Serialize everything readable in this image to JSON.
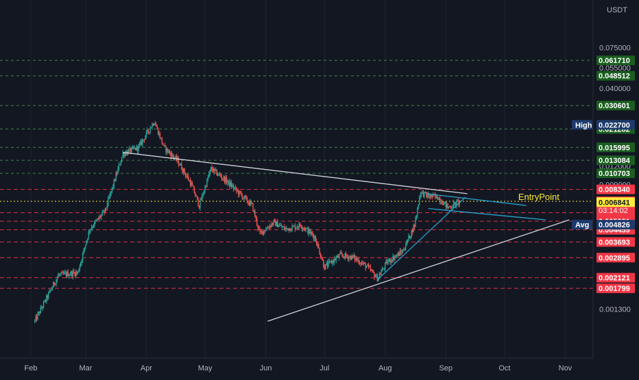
{
  "chart_data": {
    "type": "candlestick",
    "price_axis": {
      "currency": "USDT",
      "scale": "log",
      "ylim": [
        0.00108,
        0.0775
      ],
      "tick_labels": [
        "0.075000",
        "0.055000",
        "0.040000",
        "0.012000",
        "0.009000",
        "0.001300"
      ],
      "tick_values": [
        0.075,
        0.055,
        0.04,
        0.012,
        0.009,
        0.0013
      ]
    },
    "time_axis": {
      "labels": [
        "Feb",
        "Mar",
        "Apr",
        "May",
        "Jun",
        "Jul",
        "Aug",
        "Sep",
        "Oct",
        "Nov"
      ],
      "label_positions_days": [
        0,
        28,
        59,
        89,
        120,
        150,
        181,
        212,
        242,
        273
      ]
    },
    "grid": true,
    "levels": [
      {
        "value": 0.06171,
        "label": "0.061710",
        "style": "green"
      },
      {
        "value": 0.048512,
        "label": "0.048512",
        "style": "green"
      },
      {
        "value": 0.030601,
        "label": "0.030601",
        "style": "green"
      },
      {
        "value": 0.021282,
        "label": "0.021282",
        "style": "green"
      },
      {
        "value": 0.015995,
        "label": "0.015995",
        "style": "green"
      },
      {
        "value": 0.013084,
        "label": "0.013084",
        "style": "green"
      },
      {
        "value": 0.010703,
        "label": "0.010703",
        "style": "green"
      },
      {
        "value": 0.00834,
        "label": "0.008340",
        "style": "red"
      },
      {
        "value": 0.00581,
        "label": "0.005810",
        "style": "red"
      },
      {
        "value": 0.005091,
        "label": "0.005091",
        "style": "red"
      },
      {
        "value": 0.004459,
        "label": "0.004459",
        "style": "red"
      },
      {
        "value": 0.003693,
        "label": "0.003693",
        "style": "red"
      },
      {
        "value": 0.002895,
        "label": "0.002895",
        "style": "red"
      },
      {
        "value": 0.002121,
        "label": "0.002121",
        "style": "red"
      },
      {
        "value": 0.001799,
        "label": "0.001799",
        "style": "red"
      }
    ],
    "markers": [
      {
        "value": 0.0227,
        "tag": "High",
        "label": "0.022700",
        "style": "navy"
      },
      {
        "value": 0.004826,
        "tag": "Avg",
        "label": "0.004826",
        "style": "navy"
      }
    ],
    "entry": {
      "value": 0.006937,
      "label": "0.006937",
      "countdown": "03:14:02",
      "text": "EntryPoint"
    },
    "current": {
      "value": 0.006841,
      "label": "0.006841"
    },
    "key_points": [
      {
        "day": 2,
        "price": 0.00108
      },
      {
        "day": 14,
        "price": 0.0022
      },
      {
        "day": 24,
        "price": 0.0023
      },
      {
        "day": 30,
        "price": 0.0045
      },
      {
        "day": 38,
        "price": 0.006
      },
      {
        "day": 47,
        "price": 0.0145
      },
      {
        "day": 55,
        "price": 0.016
      },
      {
        "day": 63,
        "price": 0.024
      },
      {
        "day": 68,
        "price": 0.016
      },
      {
        "day": 75,
        "price": 0.013
      },
      {
        "day": 82,
        "price": 0.009
      },
      {
        "day": 86,
        "price": 0.0065
      },
      {
        "day": 92,
        "price": 0.0115
      },
      {
        "day": 100,
        "price": 0.0095
      },
      {
        "day": 108,
        "price": 0.0075
      },
      {
        "day": 113,
        "price": 0.0065
      },
      {
        "day": 117,
        "price": 0.0042
      },
      {
        "day": 124,
        "price": 0.005
      },
      {
        "day": 130,
        "price": 0.0045
      },
      {
        "day": 138,
        "price": 0.0048
      },
      {
        "day": 145,
        "price": 0.004
      },
      {
        "day": 150,
        "price": 0.0025
      },
      {
        "day": 158,
        "price": 0.003
      },
      {
        "day": 165,
        "price": 0.0029
      },
      {
        "day": 172,
        "price": 0.0025
      },
      {
        "day": 177,
        "price": 0.0021
      },
      {
        "day": 182,
        "price": 0.0027
      },
      {
        "day": 190,
        "price": 0.0032
      },
      {
        "day": 196,
        "price": 0.0048
      },
      {
        "day": 199,
        "price": 0.008
      },
      {
        "day": 203,
        "price": 0.0075
      },
      {
        "day": 208,
        "price": 0.0074
      },
      {
        "day": 213,
        "price": 0.0063
      },
      {
        "day": 219,
        "price": 0.0069
      }
    ],
    "trendlines": [
      {
        "color": "#d1d4dc",
        "from": {
          "day": 47,
          "price": 0.0148
        },
        "to": {
          "day": 223,
          "price": 0.0078
        }
      },
      {
        "color": "#d1d4dc",
        "from": {
          "day": 121,
          "price": 0.00108
        },
        "to": {
          "day": 275,
          "price": 0.0052
        }
      },
      {
        "color": "#26a5cf",
        "from": {
          "day": 177,
          "price": 0.00205
        },
        "to": {
          "day": 222,
          "price": 0.0074
        }
      },
      {
        "color": "#26a5cf",
        "from": {
          "day": 202,
          "price": 0.0078
        },
        "to": {
          "day": 253,
          "price": 0.0065
        }
      },
      {
        "color": "#26a5cf",
        "from": {
          "day": 203,
          "price": 0.0062
        },
        "to": {
          "day": 263,
          "price": 0.0052
        }
      }
    ],
    "colors": {
      "background": "#131722",
      "up": "#26a69a",
      "down": "#ef5350",
      "green_level": "#4caf50",
      "red_level": "#f23645",
      "entry_line": "#ffeb3b",
      "navy_tag": "#1e3a6b",
      "axis_text": "#b2b5be"
    }
  }
}
